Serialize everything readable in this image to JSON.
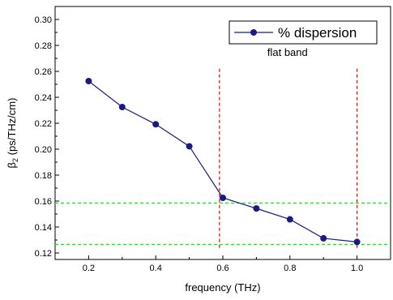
{
  "chart_data": {
    "type": "line",
    "xlabel": "frequency (THz)",
    "ylabel_main": "β",
    "ylabel_sub": "2",
    "ylabel_rest": " (ps/THz/cm)",
    "xlim": [
      0.1,
      1.1
    ],
    "ylim": [
      0.115,
      0.31
    ],
    "xticks": [
      0.2,
      0.4,
      0.6,
      0.8,
      1.0
    ],
    "xtick_labels": [
      "0.2",
      "0.4",
      "0.6",
      "0.8",
      "1.0"
    ],
    "yticks": [
      0.12,
      0.14,
      0.16,
      0.18,
      0.2,
      0.22,
      0.24,
      0.26,
      0.28,
      0.3
    ],
    "ytick_labels": [
      "0.12",
      "0.14",
      "0.16",
      "0.18",
      "0.20",
      "0.22",
      "0.24",
      "0.26",
      "0.28",
      "0.30"
    ],
    "series": [
      {
        "name": "% dispersion",
        "color": "#1a1a80",
        "x": [
          0.2,
          0.3,
          0.4,
          0.5,
          0.6,
          0.7,
          0.8,
          0.9,
          1.0
        ],
        "y": [
          0.2525,
          0.2325,
          0.2192,
          0.2022,
          0.1625,
          0.1543,
          0.1459,
          0.1313,
          0.1285
        ]
      }
    ],
    "vlines": {
      "x": [
        0.59,
        1.0
      ],
      "color": "#ff0000",
      "style": "dashed"
    },
    "hlines": {
      "y": [
        0.1585,
        0.1265
      ],
      "color": "#00ff00",
      "style": "dashed"
    },
    "annotation": {
      "text": "flat band",
      "x": 0.8,
      "y": 0.275
    },
    "legend": {
      "placement": "top-right",
      "entry": "% dispersion"
    },
    "grid": false
  }
}
